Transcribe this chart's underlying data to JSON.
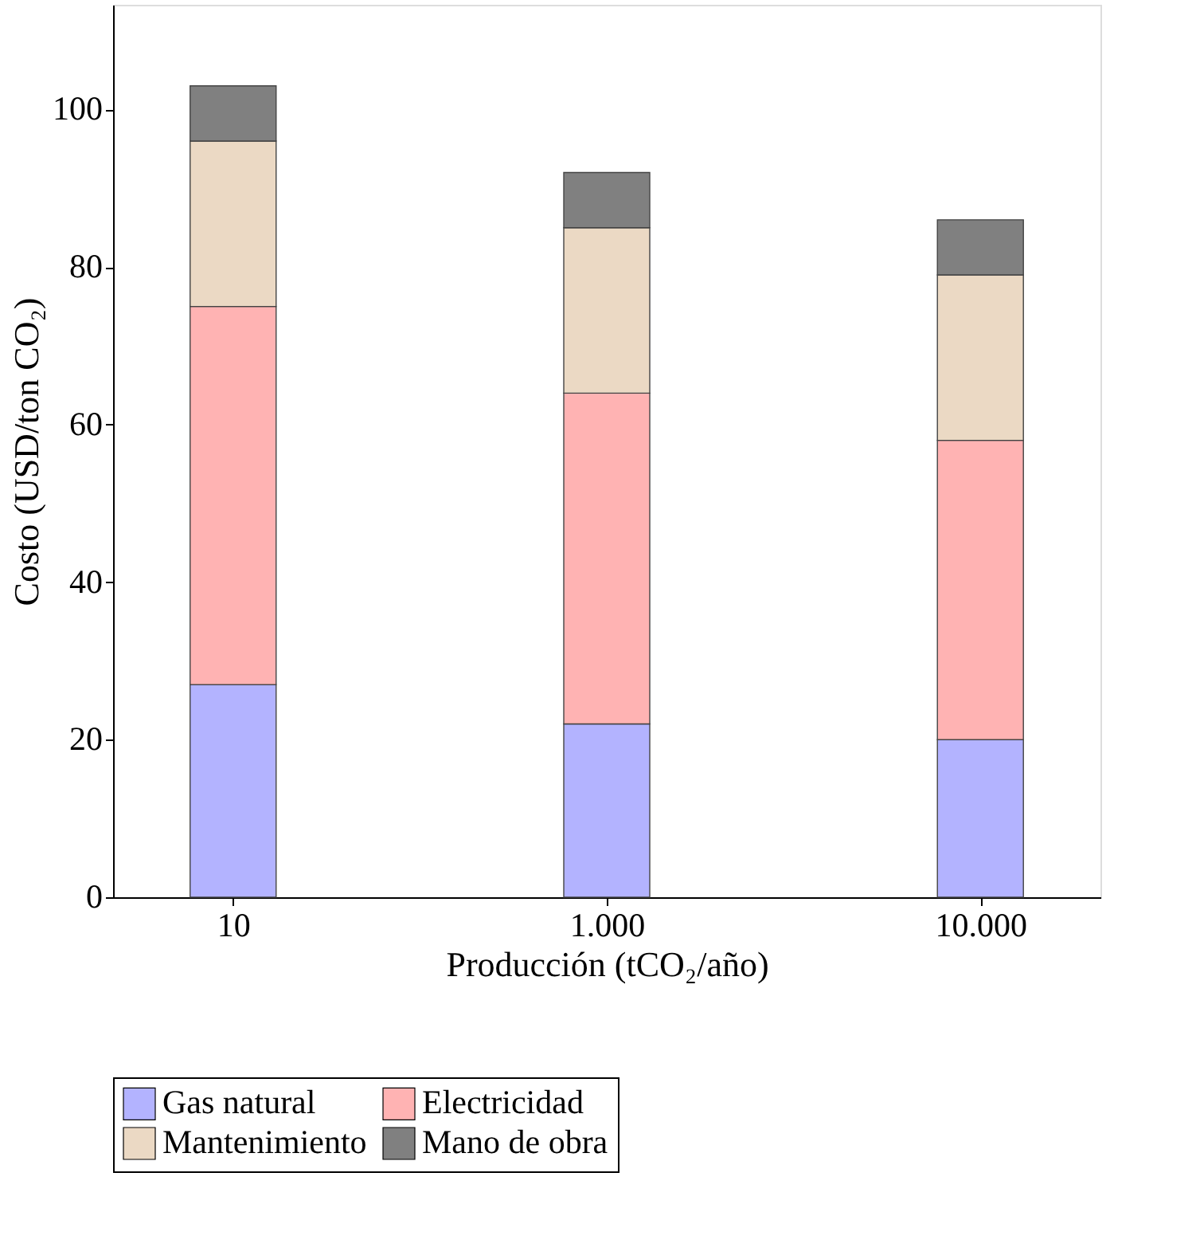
{
  "chart_data": {
    "type": "bar",
    "stacked": true,
    "xlabel": "Producción (tCO₂/año)",
    "ylabel": "Costo (USD/ton CO₂)",
    "categories": [
      "10",
      "1.000",
      "10.000"
    ],
    "series": [
      {
        "name": "Gas natural",
        "color": "#b3b3ff",
        "values": [
          27,
          22,
          20
        ]
      },
      {
        "name": "Electricidad",
        "color": "#ffb3b3",
        "values": [
          48,
          42,
          38
        ]
      },
      {
        "name": "Mantenimiento",
        "color": "#ebd9c4",
        "values": [
          21,
          21,
          21
        ]
      },
      {
        "name": "Mano de obra",
        "color": "#808080",
        "values": [
          7,
          7,
          7
        ]
      }
    ],
    "ylim": [
      0,
      113.3
    ],
    "yticks": [
      0,
      20,
      40,
      60,
      80,
      100
    ],
    "grid": false,
    "legend": "bottom"
  }
}
